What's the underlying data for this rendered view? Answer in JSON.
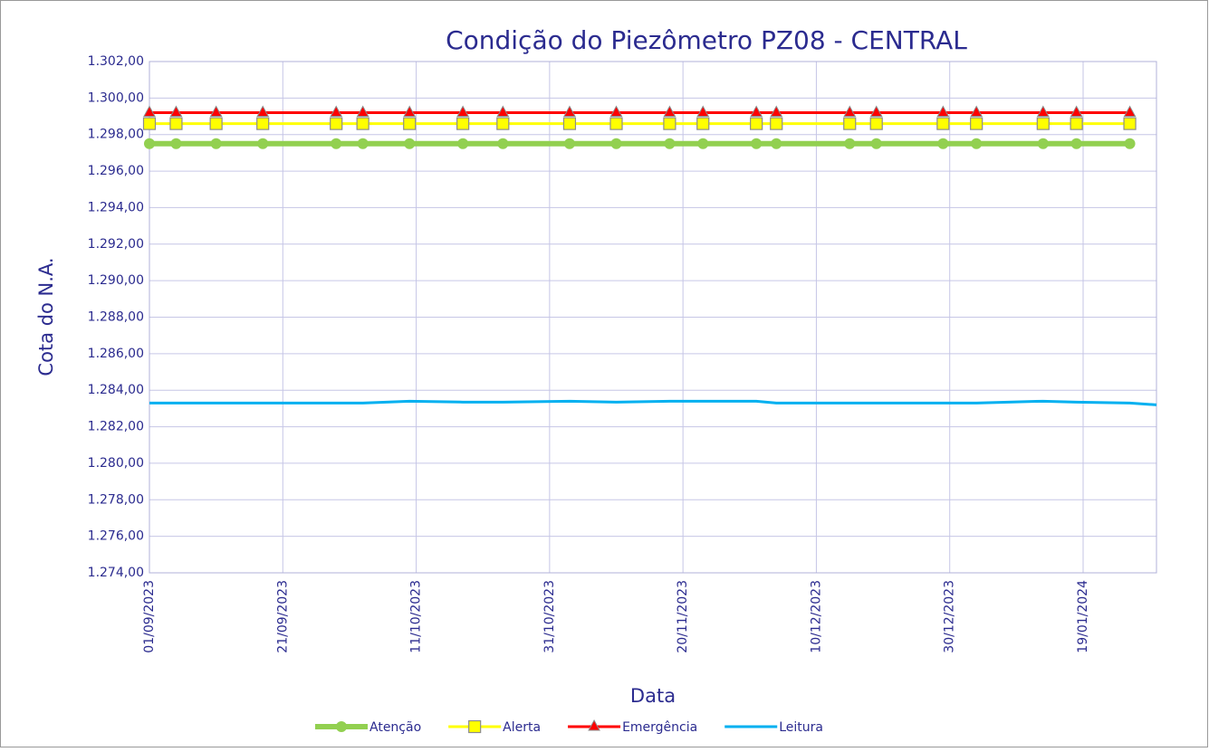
{
  "chart_data": {
    "type": "line",
    "title": "Condição do Piezômetro PZ08 - CENTRAL",
    "x_label": "Data",
    "y_label": "Cota do N.A.",
    "x": [
      "01/09/2023",
      "05/09/2023",
      "11/09/2023",
      "18/09/2023",
      "29/09/2023",
      "03/10/2023",
      "10/10/2023",
      "18/10/2023",
      "24/10/2023",
      "03/11/2023",
      "10/11/2023",
      "18/11/2023",
      "23/11/2023",
      "01/12/2023",
      "04/12/2023",
      "15/12/2023",
      "19/12/2023",
      "29/12/2023",
      "03/01/2024",
      "13/01/2024",
      "18/01/2024",
      "26/01/2024",
      "30/01/2024"
    ],
    "series": [
      {
        "name": "Atenção",
        "color": "#92d050",
        "marker": "circle",
        "values": [
          1297.5,
          1297.5,
          1297.5,
          1297.5,
          1297.5,
          1297.5,
          1297.5,
          1297.5,
          1297.5,
          1297.5,
          1297.5,
          1297.5,
          1297.5,
          1297.5,
          1297.5,
          1297.5,
          1297.5,
          1297.5,
          1297.5,
          1297.5,
          1297.5,
          1297.5,
          null
        ]
      },
      {
        "name": "Alerta",
        "color": "#ffff00",
        "marker": "square",
        "values": [
          1298.6,
          1298.6,
          1298.6,
          1298.6,
          1298.6,
          1298.6,
          1298.6,
          1298.6,
          1298.6,
          1298.6,
          1298.6,
          1298.6,
          1298.6,
          1298.6,
          1298.6,
          1298.6,
          1298.6,
          1298.6,
          1298.6,
          1298.6,
          1298.6,
          1298.6,
          null
        ]
      },
      {
        "name": "Emergência",
        "color": "#ff0000",
        "marker": "triangle",
        "values": [
          1299.2,
          1299.2,
          1299.2,
          1299.2,
          1299.2,
          1299.2,
          1299.2,
          1299.2,
          1299.2,
          1299.2,
          1299.2,
          1299.2,
          1299.2,
          1299.2,
          1299.2,
          1299.2,
          1299.2,
          1299.2,
          1299.2,
          1299.2,
          1299.2,
          1299.2,
          null
        ]
      },
      {
        "name": "Leitura",
        "color": "#00b0f0",
        "marker": "none",
        "values": [
          1283.3,
          1283.3,
          1283.3,
          1283.3,
          1283.3,
          1283.3,
          1283.4,
          1283.35,
          1283.35,
          1283.4,
          1283.35,
          1283.4,
          1283.4,
          1283.4,
          1283.3,
          1283.3,
          1283.3,
          1283.3,
          1283.3,
          1283.4,
          1283.35,
          1283.3,
          1283.2
        ]
      }
    ],
    "xlim": [
      "01/09/2023",
      "30/01/2024"
    ],
    "xticks": [
      "01/09/2023",
      "21/09/2023",
      "11/10/2023",
      "31/10/2023",
      "20/11/2023",
      "10/12/2023",
      "30/12/2023",
      "19/01/2024"
    ],
    "ylim": [
      1274,
      1302
    ],
    "yticks": [
      {
        "value": 1274,
        "label": "1.274,00"
      },
      {
        "value": 1276,
        "label": "1.276,00"
      },
      {
        "value": 1278,
        "label": "1.278,00"
      },
      {
        "value": 1280,
        "label": "1.280,00"
      },
      {
        "value": 1282,
        "label": "1.282,00"
      },
      {
        "value": 1284,
        "label": "1.284,00"
      },
      {
        "value": 1286,
        "label": "1.286,00"
      },
      {
        "value": 1288,
        "label": "1.288,00"
      },
      {
        "value": 1290,
        "label": "1.290,00"
      },
      {
        "value": 1292,
        "label": "1.292,00"
      },
      {
        "value": 1294,
        "label": "1.294,00"
      },
      {
        "value": 1296,
        "label": "1.296,00"
      },
      {
        "value": 1298,
        "label": "1.298,00"
      },
      {
        "value": 1300,
        "label": "1.300,00"
      },
      {
        "value": 1302,
        "label": "1.302,00"
      }
    ],
    "grid": true,
    "legend": "bottom"
  }
}
